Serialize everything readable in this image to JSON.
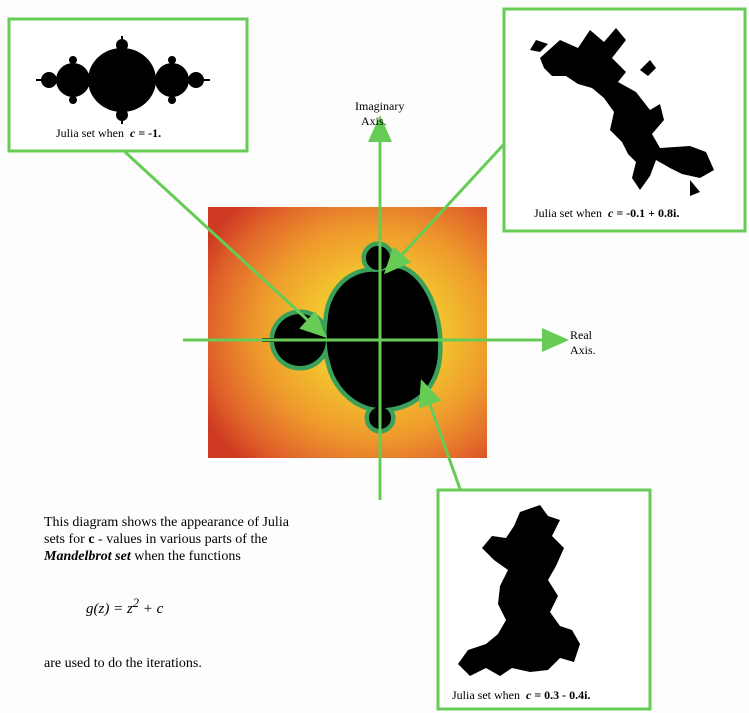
{
  "axes": {
    "imaginary": [
      "Imaginary",
      "Axis."
    ],
    "real": [
      "Real",
      "Axis."
    ]
  },
  "boxes": [
    {
      "prefix": "Julia set when",
      "variable": "c",
      "value": "= -1."
    },
    {
      "prefix": "Julia set when",
      "variable": "c",
      "value": "= -0.1 + 0.8i."
    },
    {
      "prefix": "Julia set when",
      "variable": "c",
      "value": "= 0.3 - 0.4i."
    }
  ],
  "description": {
    "segments": [
      "This diagram shows the appearance of Julia sets for",
      "c",
      "- values in various parts of the",
      "Mandelbrot set",
      "when the functions"
    ],
    "formula": [
      "g(z) = z",
      "2",
      "+ c"
    ],
    "closing": "are used to do the iterations."
  }
}
